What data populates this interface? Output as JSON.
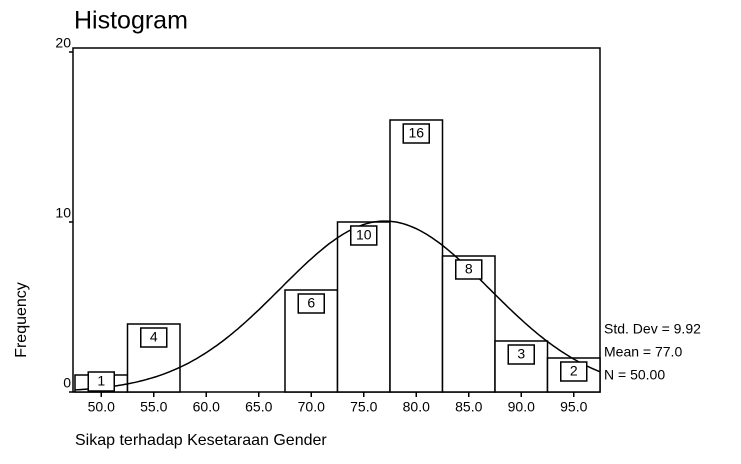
{
  "chart_data": {
    "type": "histogram",
    "title": "Histogram",
    "x_label": "Sikap terhadap Kesetaraan Gender",
    "y_label": "Frequency",
    "bins": [
      47.5,
      52.5,
      57.5,
      62.5,
      67.5,
      72.5,
      77.5,
      82.5,
      87.5,
      92.5,
      97.5
    ],
    "values": [
      1,
      4,
      0,
      0,
      6,
      10,
      16,
      8,
      3,
      2
    ],
    "color": "#ffffff",
    "xlim": [
      47.5,
      97.5
    ],
    "xticks": [
      {
        "value": 50,
        "label": "50.0"
      },
      {
        "value": 55,
        "label": "55.0"
      },
      {
        "value": 60,
        "label": "60.0"
      },
      {
        "value": 65,
        "label": "65.0"
      },
      {
        "value": 70,
        "label": "70.0"
      },
      {
        "value": 75,
        "label": "75.0"
      },
      {
        "value": 80,
        "label": "80.0"
      },
      {
        "value": 85,
        "label": "85.0"
      },
      {
        "value": 90,
        "label": "90.0"
      },
      {
        "value": 95,
        "label": "95.0"
      }
    ],
    "ylim": [
      0,
      20
    ],
    "yticks": [
      0,
      10,
      20
    ],
    "normal_curve": {
      "mean": 77,
      "std_dev": 9.92,
      "n": 50
    },
    "annotations": [
      "Std. Dev = 9.92",
      "Mean = 77.0",
      "N = 50.00"
    ]
  }
}
